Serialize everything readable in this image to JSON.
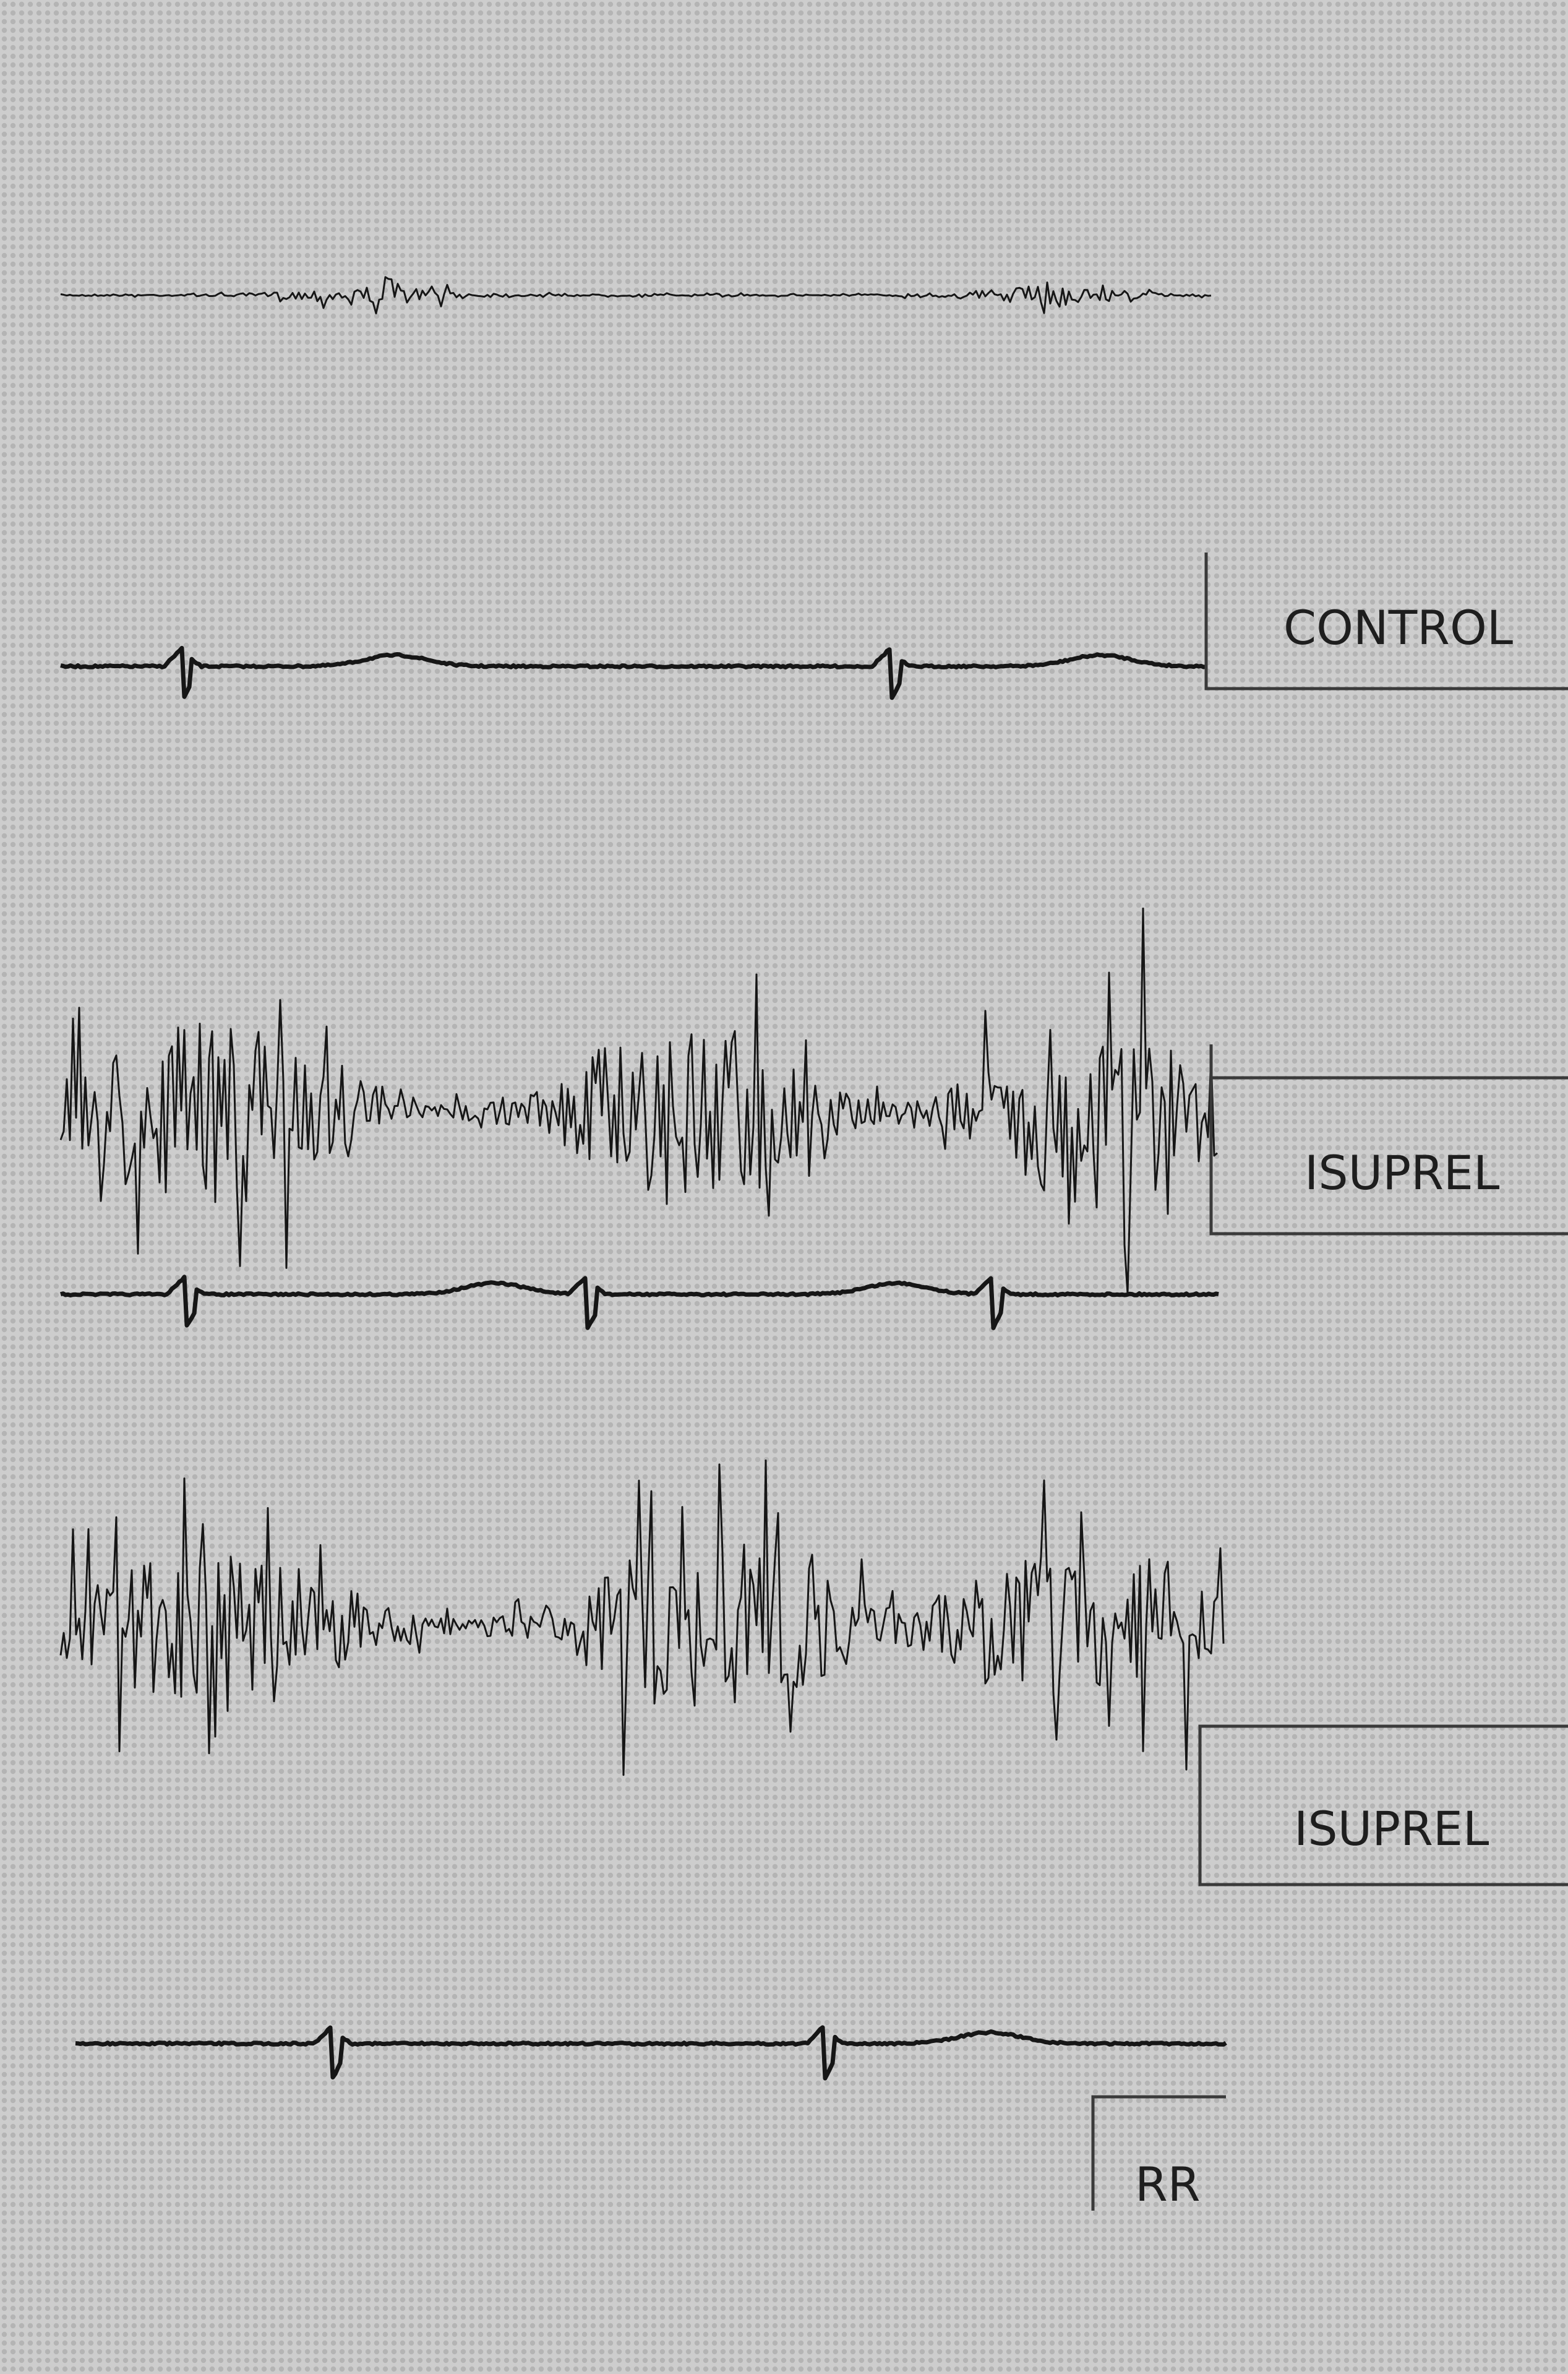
{
  "panels": [
    {
      "label": "CONTROL"
    },
    {
      "label": "ISUPREL"
    },
    {
      "label": "ISUPREL"
    }
  ],
  "scale_label": "RR"
}
